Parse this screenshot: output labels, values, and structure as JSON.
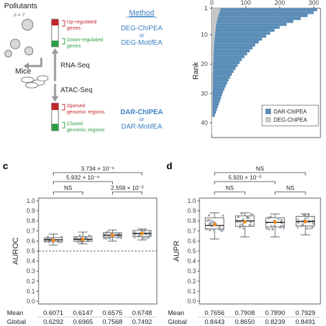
{
  "schematic": {
    "pollutants": "Pollutants",
    "n_label": "n = 7",
    "mice": "Mice",
    "rna_seq": "RNA-Seq",
    "atac_seq": "ATAC-Seq",
    "up_genes": [
      "Up-regulated",
      "genes"
    ],
    "down_genes": [
      "Down-regulated",
      "genes"
    ],
    "opened_regions": [
      "Opened",
      "genomic regions"
    ],
    "closed_regions": [
      "Closed",
      "genomic regions"
    ],
    "method_title": "Method",
    "rna_methods": [
      "DEG-ChIPEA",
      "or",
      "DEG-MotifEA"
    ],
    "atac_methods": [
      "DAR-ChIPEA",
      "or",
      "DAR-MotifEA"
    ],
    "colors": {
      "up": "#c0282d",
      "down": "#2e9e45",
      "method": "#3a7fc1"
    }
  },
  "panel_c_label": "c",
  "panel_d_label": "d",
  "summary_labels": {
    "mean": "Mean",
    "global": "Global"
  },
  "chart_data": [
    {
      "type": "bar",
      "orientation": "horizontal",
      "ylabel": "Rank",
      "x_ticks": [
        "0",
        "100",
        "200",
        "300"
      ],
      "xlim": [
        0,
        320
      ],
      "y_ticks": [
        "1",
        "10",
        "20",
        "30",
        "40"
      ],
      "ylim": [
        1,
        45
      ],
      "legend": {
        "placement": "bottom-right",
        "entries": [
          "DAR-ChIPEA",
          "DEG-ChIPEA"
        ]
      },
      "series": [
        {
          "name": "DAR-ChIPEA",
          "color": "#5b8db8",
          "ranks": [
            2,
            3,
            4,
            5,
            6,
            7,
            8,
            9,
            10,
            11,
            12,
            13,
            14,
            15,
            16,
            17,
            18,
            19,
            20,
            21,
            22,
            23,
            24,
            25,
            26,
            27,
            28,
            29,
            30,
            31,
            32,
            33,
            34,
            35,
            36,
            37,
            38
          ],
          "values": [
            310,
            300,
            282,
            262,
            240,
            220,
            200,
            185,
            172,
            160,
            148,
            138,
            128,
            120,
            112,
            104,
            96,
            88,
            82,
            76,
            70,
            64,
            59,
            54,
            49,
            45,
            41,
            37,
            33,
            30,
            27,
            24,
            21,
            18,
            15,
            12,
            9
          ]
        },
        {
          "name": "DEG-ChIPEA",
          "color": "#c8c8c8",
          "ranks": [
            2,
            3,
            4,
            5,
            6,
            7,
            8,
            9,
            10,
            11,
            12,
            13,
            14,
            15,
            16,
            17,
            18,
            19,
            20,
            21,
            22,
            23,
            24,
            25,
            26,
            27,
            28,
            29,
            30,
            31,
            32,
            33,
            34,
            35,
            36,
            37,
            38,
            39,
            40,
            41,
            42,
            43,
            44
          ],
          "values": [
            25,
            22,
            19,
            17,
            15,
            13,
            12,
            11,
            10,
            9,
            8,
            7,
            7,
            6,
            6,
            5,
            5,
            5,
            4,
            4,
            4,
            4,
            3,
            3,
            3,
            3,
            3,
            3,
            2,
            2,
            2,
            2,
            2,
            2,
            2,
            2,
            2,
            1,
            1,
            1,
            1,
            1,
            1
          ]
        }
      ]
    },
    {
      "type": "box",
      "ylabel": "AUROC",
      "yticks": [
        "0.0",
        "0.1",
        "0.2",
        "0.3",
        "0.4",
        "0.5",
        "0.6",
        "0.7",
        "0.8",
        "0.9",
        "1.0"
      ],
      "ylim": [
        0,
        1
      ],
      "reference_line": 0.5,
      "boxes": [
        {
          "q1": 0.595,
          "median": 0.612,
          "q3": 0.632,
          "low": 0.56,
          "high": 0.67,
          "mean": 0.6071
        },
        {
          "q1": 0.595,
          "median": 0.617,
          "q3": 0.643,
          "low": 0.57,
          "high": 0.69,
          "mean": 0.6147
        },
        {
          "q1": 0.637,
          "median": 0.658,
          "q3": 0.683,
          "low": 0.6,
          "high": 0.71,
          "mean": 0.6575
        },
        {
          "q1": 0.645,
          "median": 0.675,
          "q3": 0.705,
          "low": 0.61,
          "high": 0.72,
          "mean": 0.6748
        }
      ],
      "mean": [
        "0.6071",
        "0.6147",
        "0.6575",
        "0.6748"
      ],
      "global": [
        "0.6292",
        "0.6965",
        "0.7568",
        "0.7492"
      ],
      "comparisons": [
        {
          "from": 0,
          "to": 3,
          "label": "3.734 × 10⁻⁶"
        },
        {
          "from": 0,
          "to": 2,
          "label": "5.932 × 10⁻⁹"
        },
        {
          "from": 0,
          "to": 1,
          "label": "NS"
        },
        {
          "from": 2,
          "to": 3,
          "label": "2.558 × 10⁻²"
        }
      ]
    },
    {
      "type": "box",
      "ylabel": "AUPR",
      "yticks": [
        "0.0",
        "0.1",
        "0.2",
        "0.3",
        "0.4",
        "0.5",
        "0.6",
        "0.7",
        "0.8",
        "0.9",
        "1.0"
      ],
      "ylim": [
        0,
        1
      ],
      "boxes": [
        {
          "q1": 0.72,
          "median": 0.755,
          "q3": 0.83,
          "low": 0.62,
          "high": 0.88,
          "mean": 0.7656
        },
        {
          "q1": 0.745,
          "median": 0.8,
          "q3": 0.85,
          "low": 0.64,
          "high": 0.88,
          "mean": 0.7908
        },
        {
          "q1": 0.74,
          "median": 0.785,
          "q3": 0.83,
          "low": 0.64,
          "high": 0.87,
          "mean": 0.789
        },
        {
          "q1": 0.75,
          "median": 0.795,
          "q3": 0.845,
          "low": 0.66,
          "high": 0.87,
          "mean": 0.7929
        }
      ],
      "mean": [
        "0.7656",
        "0.7908",
        "0.7890",
        "0.7929"
      ],
      "global": [
        "0.8443",
        "0.8650",
        "0.8239",
        "0.8491"
      ],
      "comparisons": [
        {
          "from": 0,
          "to": 3,
          "label": "NS"
        },
        {
          "from": 0,
          "to": 2,
          "label": "5.920 × 10⁻³"
        },
        {
          "from": 0,
          "to": 1,
          "label": "NS"
        },
        {
          "from": 2,
          "to": 3,
          "label": "NS"
        }
      ]
    }
  ]
}
